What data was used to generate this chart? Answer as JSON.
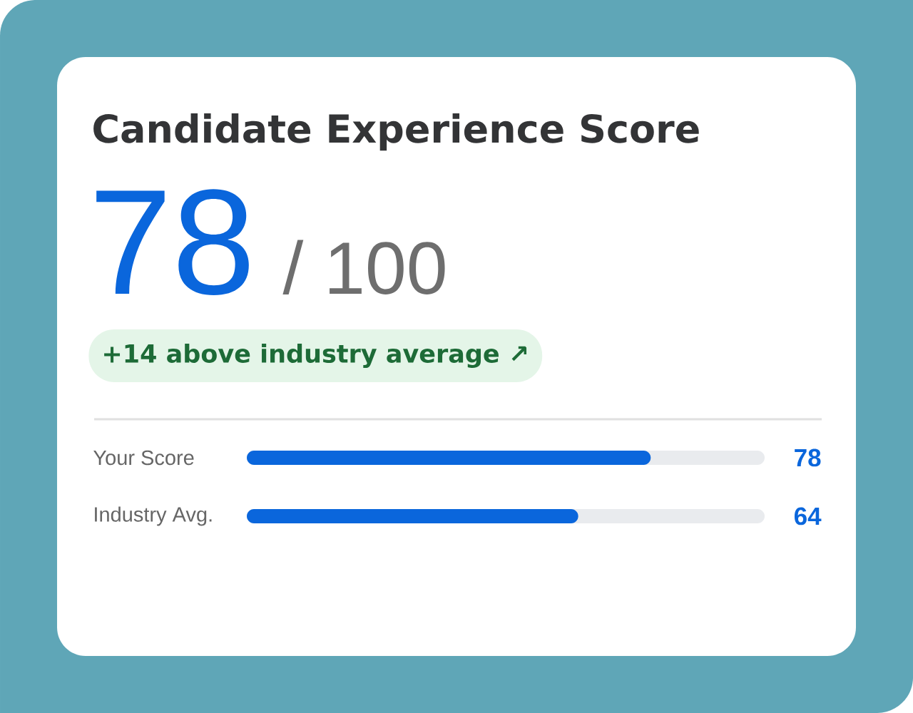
{
  "chart_data": {
    "type": "bar",
    "orientation": "horizontal",
    "title": "Candidate Experience Score",
    "annotations": [
      "78",
      "/ 100",
      "+14 above industry average ↗"
    ],
    "categories": [
      "Your Score",
      "Industry Avg."
    ],
    "values": [
      78,
      64
    ],
    "color": "#0a66dc",
    "xlim": [
      0,
      100
    ],
    "data_labels": true,
    "tick_labels": "y"
  }
}
